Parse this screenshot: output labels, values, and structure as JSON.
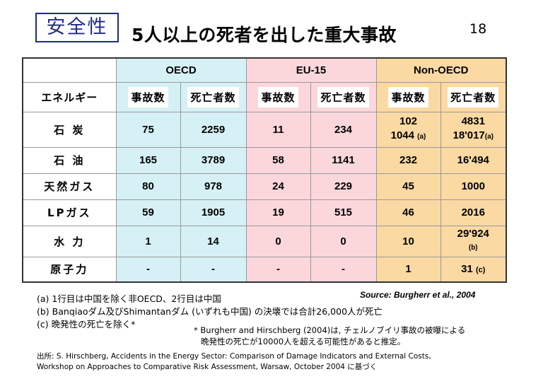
{
  "header": {
    "tag": "安全性",
    "title": "5人以上の死者を出した重大事故",
    "page_number": "18"
  },
  "table": {
    "groups": [
      "OECD",
      "EU-15",
      "Non-OECD"
    ],
    "energy_header": "エネルギー",
    "sub_headers": [
      "事故数",
      "死亡者数",
      "事故数",
      "死亡者数",
      "事故数",
      "死亡者数"
    ],
    "rows": [
      {
        "energy": "石 炭",
        "values": [
          "75",
          "2259",
          "11",
          "234"
        ],
        "non_acc_1": "102",
        "non_acc_2": "1044",
        "non_acc_2_note": "(a)",
        "non_death_1": "4831",
        "non_death_2": "18'017",
        "non_death_2_note": "(a)"
      },
      {
        "energy": "石 油",
        "values": [
          "165",
          "3789",
          "58",
          "1141",
          "232",
          "16'494"
        ]
      },
      {
        "energy": "天然ガス",
        "values": [
          "80",
          "978",
          "24",
          "229",
          "45",
          "1000"
        ]
      },
      {
        "energy": "LPガス",
        "values": [
          "59",
          "1905",
          "19",
          "515",
          "46",
          "2016"
        ]
      },
      {
        "energy": "水 力",
        "values": [
          "1",
          "14",
          "0",
          "0",
          "10"
        ],
        "non_death": "29'924",
        "non_death_note": "(b)"
      },
      {
        "energy": "原子力",
        "values": [
          "-",
          "-",
          "-",
          "-",
          "1"
        ],
        "non_death": "31",
        "non_death_note": "(c)"
      }
    ]
  },
  "notes": {
    "a": "(a) 1行目は中国を除く非OECD、2行目は中国",
    "b": "(b) Banqiaoダム及びShimantanダム (いずれも中国) の決壊では合計26,000人が死亡",
    "c": "(c) 晩発性の死亡を除く*"
  },
  "source": "Source: Burgherr et al., 2004",
  "asterisk_note": {
    "line1": "* Burgherr and Hirschberg (2004)は, チェルノブイリ事故の被曝による",
    "line2": "晩発性の死亡が10000人を超える可能性があると推定。"
  },
  "citation": {
    "line1": "出所: S. Hirschberg, Accidents in the Energy Sector: Comparison of Damage Indicators and External Costs,",
    "line2": "Workshop on Approaches to Comparative Risk Assessment, Warsaw, October 2004 に基づく"
  },
  "colors": {
    "oecd": "#d6f1f5",
    "eu15": "#fbd7dc",
    "non_oecd": "#fbd9a3",
    "tag_border": "#1f2a8a"
  }
}
